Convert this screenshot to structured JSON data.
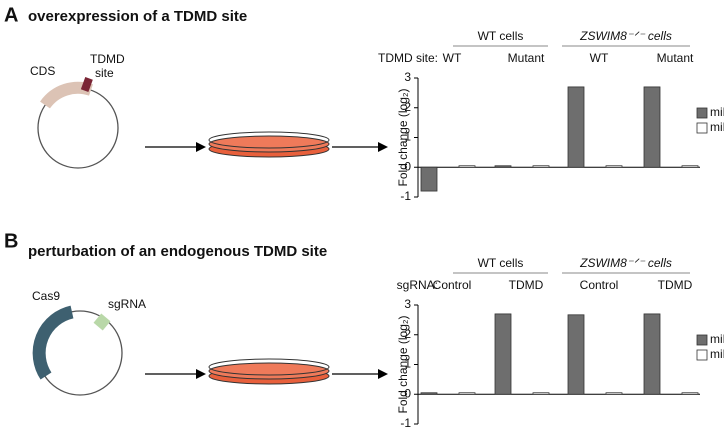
{
  "figure": {
    "panels": [
      {
        "letter": "A",
        "title": "overexpression of a TDMD site",
        "plasmid_labels": [
          "CDS",
          "TDMD",
          "site"
        ]
      },
      {
        "letter": "B",
        "title": "perturbation of an endogenous TDMD site",
        "plasmid_labels": [
          "Cas9",
          "sgRNA"
        ]
      }
    ]
  },
  "chart_data": [
    {
      "type": "bar",
      "y_label": "Fold change (log₂)",
      "row_label": "TDMD site:",
      "group_labels": [
        "WT cells",
        "ZSWIM8⁻ᐟ⁻ cells"
      ],
      "categories": [
        "WT",
        "Mutant",
        "WT",
        "Mutant"
      ],
      "series": [
        {
          "name": "miR",
          "color": "#6e6e6e",
          "values": [
            -0.8,
            0.05,
            2.7,
            2.7
          ]
        },
        {
          "name": "miRᵒˢ",
          "color": "#ffffff",
          "values": [
            0.05,
            0.05,
            0.05,
            0.05
          ]
        }
      ],
      "ylim": [
        -1,
        3
      ],
      "yticks": [
        -1,
        0,
        1,
        2,
        3
      ]
    },
    {
      "type": "bar",
      "y_label": "Fold change (log₂)",
      "row_label": "sgRNA:",
      "group_labels": [
        "WT cells",
        "ZSWIM8⁻ᐟ⁻ cells"
      ],
      "categories": [
        "Control",
        "TDMD",
        "Control",
        "TDMD"
      ],
      "series": [
        {
          "name": "miR",
          "color": "#6e6e6e",
          "values": [
            0.05,
            2.7,
            2.67,
            2.7
          ]
        },
        {
          "name": "miRᵒˢ",
          "color": "#ffffff",
          "values": [
            0.05,
            0.05,
            0.05,
            0.05
          ]
        }
      ],
      "ylim": [
        -1,
        3
      ],
      "yticks": [
        -1,
        0,
        1,
        2,
        3
      ]
    }
  ]
}
